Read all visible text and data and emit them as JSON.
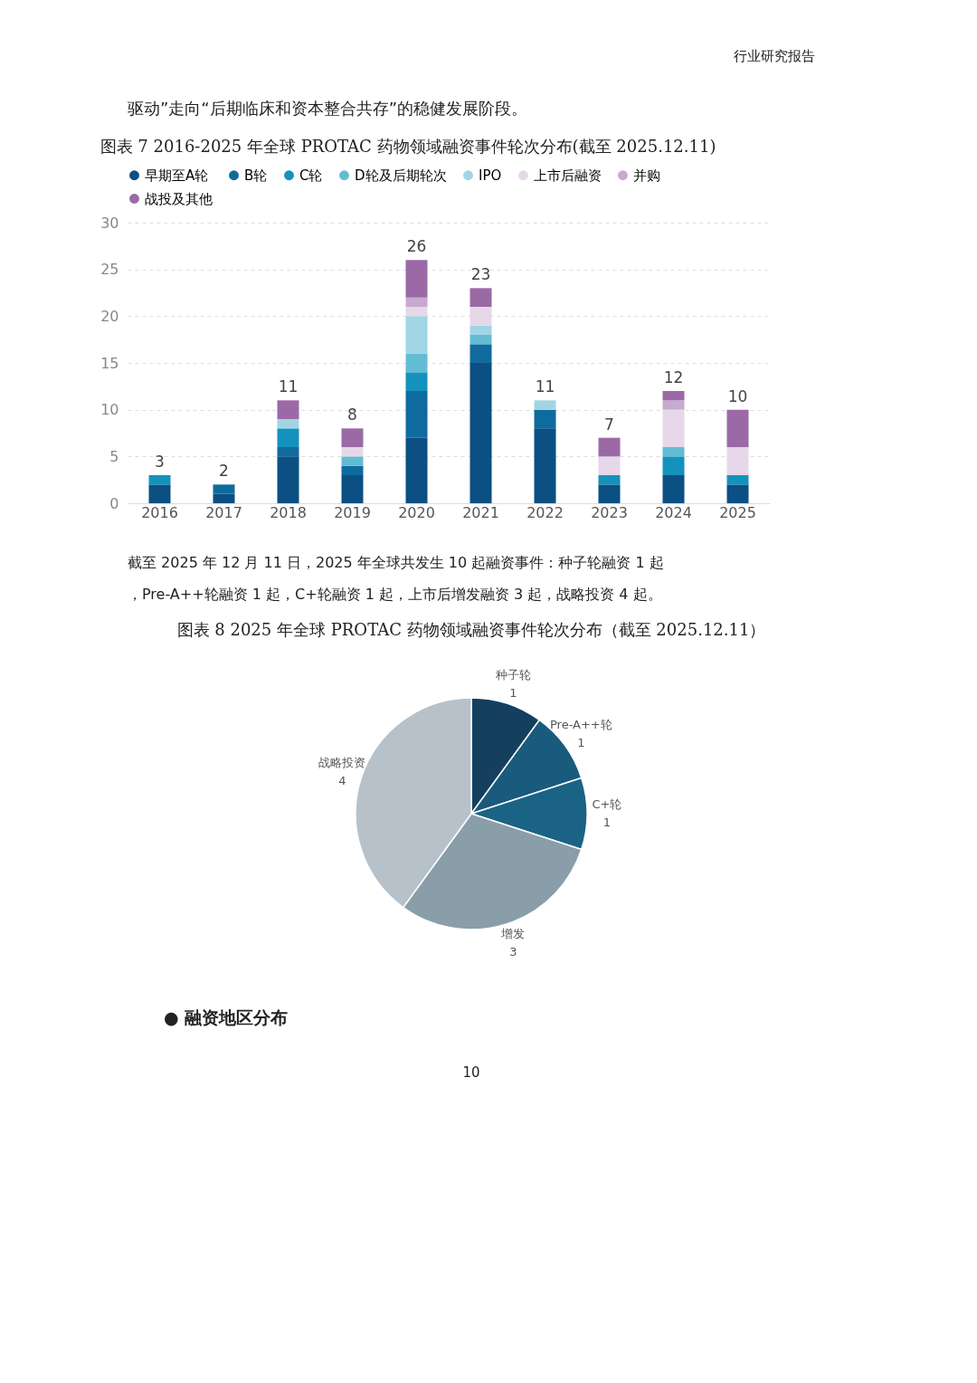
{
  "chart_data": [
    {
      "type": "bar",
      "stacked": true,
      "title": "图表 7 2016-2025 年全球 PROTAC 药物领域融资事件轮次分布(截至 2025.12.11)",
      "annotations": [
        "行业研究报告",
        "驱动”走向“后期临床和资本整合共存”的稳健发展阶段。"
      ],
      "categories": [
        "2016",
        "2017",
        "2018",
        "2019",
        "2020",
        "2021",
        "2022",
        "2023",
        "2024",
        "2025"
      ],
      "series": [
        {
          "name": "早期至A轮",
          "color": "#0b4f83",
          "values": [
            2,
            1,
            5,
            3,
            7,
            15,
            8,
            2,
            3,
            2
          ]
        },
        {
          "name": "B轮",
          "color": "#0f6b9e",
          "values": [
            0,
            1,
            1,
            1,
            5,
            2,
            2,
            0,
            0,
            0
          ]
        },
        {
          "name": "C轮",
          "color": "#1492bd",
          "values": [
            1,
            0,
            2,
            0,
            2,
            0,
            0,
            1,
            2,
            1
          ]
        },
        {
          "name": "D轮及后期轮次",
          "color": "#62bcd4",
          "values": [
            0,
            0,
            0,
            1,
            2,
            1,
            0,
            0,
            1,
            0
          ]
        },
        {
          "name": "IPO",
          "color": "#a1d5e6",
          "values": [
            0,
            0,
            1,
            0,
            4,
            1,
            1,
            0,
            0,
            0
          ]
        },
        {
          "name": "上市后融资",
          "color": "#e6d8e8",
          "values": [
            0,
            0,
            0,
            1,
            1,
            2,
            0,
            2,
            4,
            3
          ]
        },
        {
          "name": "并购",
          "color": "#c8a9cf",
          "values": [
            0,
            0,
            0,
            0,
            1,
            0,
            0,
            0,
            1,
            0
          ]
        },
        {
          "name": "战投及其他",
          "color": "#9b6aa6",
          "values": [
            0,
            0,
            2,
            2,
            4,
            2,
            0,
            2,
            1,
            4
          ]
        }
      ],
      "totals": [
        "3",
        "2",
        "11",
        "8",
        "26",
        "23",
        "11",
        "7",
        "12",
        "10"
      ],
      "ylim": [
        0,
        30
      ],
      "yticks": [
        0,
        5,
        10,
        15,
        20,
        25,
        30
      ],
      "grid": "y",
      "legend": "top left"
    },
    {
      "type": "pie",
      "title": "图表 8 2025 年全球 PROTAC 药物领域融资事件轮次分布（截至 2025.12.11）",
      "annotations": [
        "截至 2025 年 12 月 11 日，2025 年全球共发生 10 起融资事件：种子轮融资 1 起，Pre-A++轮融资 1 起，C+轮融资 1 起，上市后增发融资 3 起，战略投资 4 起。",
        "●  融资地区分布",
        "10"
      ],
      "categories": [
        "种子轮",
        "Pre-A++轮",
        "C+轮",
        "增发",
        "战略投资"
      ],
      "values": [
        1,
        1,
        1,
        3,
        4
      ],
      "colors": [
        "#143f5e",
        "#195a7d",
        "#1b6385",
        "#8a9ea9",
        "#b6c1ca"
      ],
      "data_labels": true,
      "legend": false
    }
  ]
}
